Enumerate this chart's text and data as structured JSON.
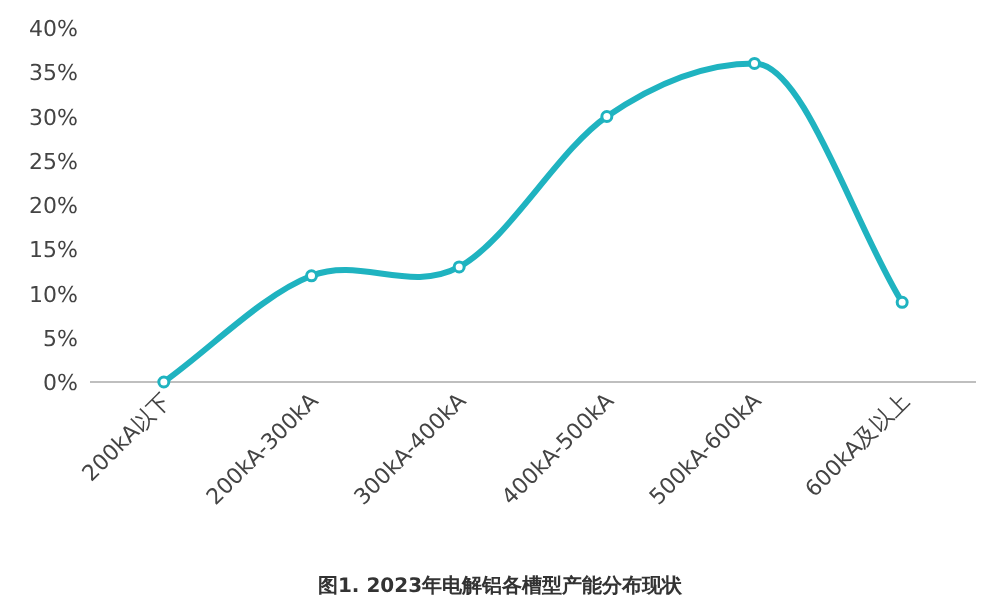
{
  "chart_data": {
    "type": "line",
    "title": "图1. 2023年电解铝各槽型产能分布现状",
    "categories": [
      "200kA以下",
      "200kA-300kA",
      "300kA-400kA",
      "400kA-500kA",
      "500kA-600kA",
      "600kA及以上"
    ],
    "series": [
      {
        "color": "#1fb3c0",
        "values": [
          0,
          12,
          13,
          30,
          36,
          9
        ]
      }
    ],
    "ylim": [
      0,
      40
    ],
    "yticks": [
      {
        "value": 0,
        "label": "0%"
      },
      {
        "value": 5,
        "label": "5%"
      },
      {
        "value": 10,
        "label": "10%"
      },
      {
        "value": 15,
        "label": "15%"
      },
      {
        "value": 20,
        "label": "20%"
      },
      {
        "value": 25,
        "label": "25%"
      },
      {
        "value": 30,
        "label": "30%"
      },
      {
        "value": 35,
        "label": "35%"
      },
      {
        "value": 40,
        "label": "40%"
      }
    ],
    "marker": "circle"
  }
}
